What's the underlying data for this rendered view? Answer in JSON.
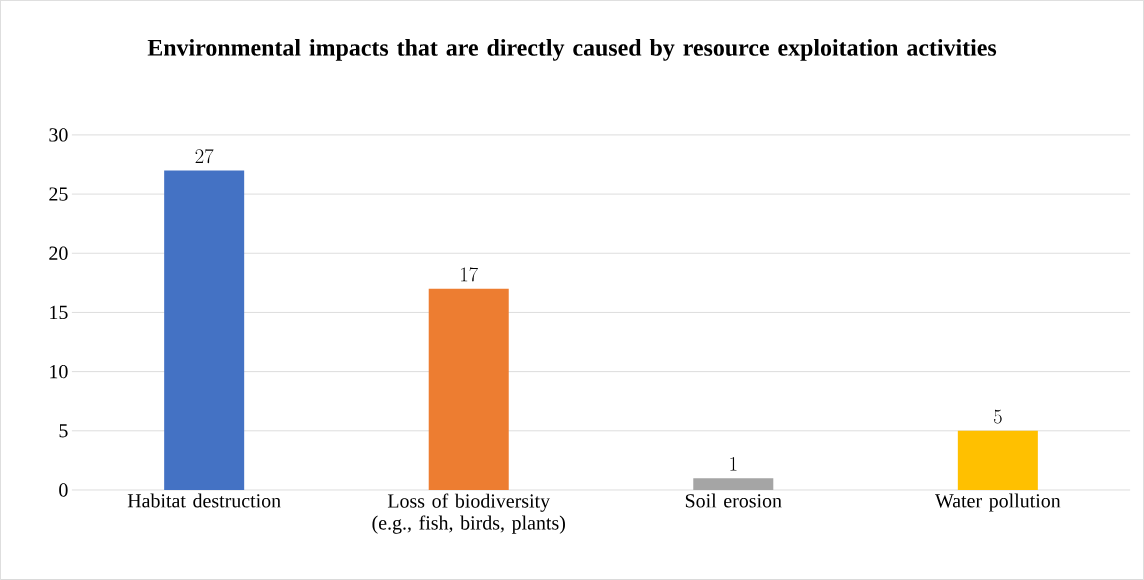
{
  "chart_data": {
    "type": "bar",
    "title": "Environmental impacts that are directly caused by resource exploitation activities",
    "categories": [
      "Habitat destruction",
      "Loss of biodiversity (e.g., fish, birds, plants)",
      "Soil erosion",
      "Water pollution"
    ],
    "values": [
      27,
      17,
      1,
      5
    ],
    "colors": [
      "#4472c4",
      "#ed7d31",
      "#a5a5a5",
      "#ffc000"
    ],
    "ylim": [
      0,
      30
    ],
    "yticks": [
      0,
      5,
      10,
      15,
      20,
      25,
      30
    ],
    "grid": "y",
    "data_labels": true
  }
}
